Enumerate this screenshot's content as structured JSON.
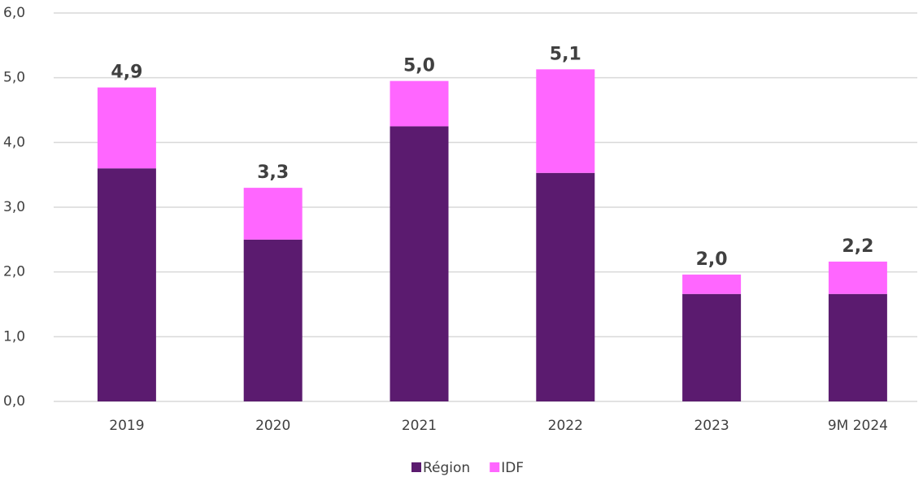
{
  "chart_data": {
    "type": "stacked_bar",
    "categories": [
      "2019",
      "2020",
      "2021",
      "2022",
      "2023",
      "9M 2024"
    ],
    "series": [
      {
        "name": "Région",
        "color": "#5b1b6f",
        "values": [
          3.6,
          2.5,
          4.25,
          3.53,
          1.66,
          1.66
        ]
      },
      {
        "name": "IDF",
        "color": "#ff66ff",
        "values": [
          1.25,
          0.8,
          0.7,
          1.6,
          0.3,
          0.5
        ]
      }
    ],
    "totals": [
      4.85,
      3.3,
      4.95,
      5.13,
      1.96,
      2.16
    ],
    "total_labels": [
      "4,9",
      "3,3",
      "5,0",
      "5,1",
      "2,0",
      "2,2"
    ],
    "ylim": [
      0,
      6
    ],
    "yticks": [
      {
        "value": 0,
        "label": "0,0"
      },
      {
        "value": 1,
        "label": "1,0"
      },
      {
        "value": 2,
        "label": "2,0"
      },
      {
        "value": 3,
        "label": "3,0"
      },
      {
        "value": 4,
        "label": "4,0"
      },
      {
        "value": 5,
        "label": "5,0"
      },
      {
        "value": 6,
        "label": "6,0"
      }
    ],
    "grid": true,
    "legend": "bottom"
  }
}
